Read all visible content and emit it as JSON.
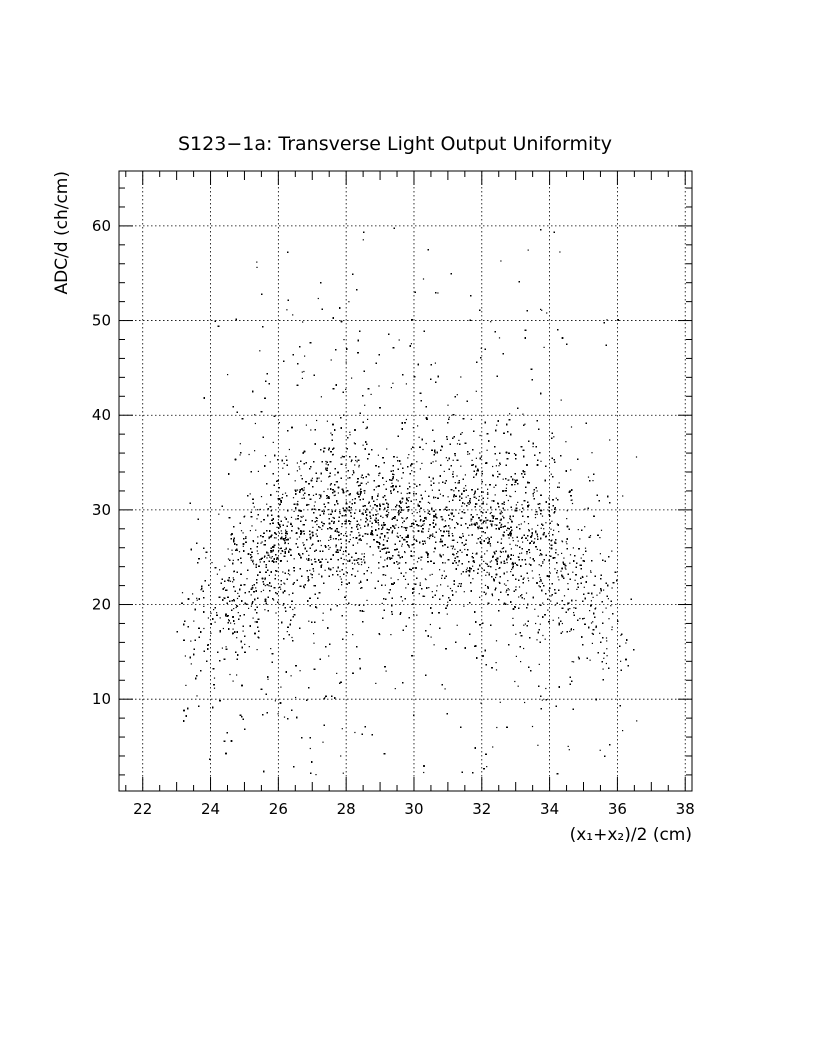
{
  "chart_data": {
    "type": "scatter",
    "title": "S123−1a: Transverse Light Output Uniformity",
    "xlabel": "(x₁+x₂)/2 (cm)",
    "ylabel": "ADC/d (ch/cm)",
    "xlim": [
      21.3,
      38.2
    ],
    "ylim": [
      0.3,
      65.8
    ],
    "x_ticks": [
      22,
      24,
      26,
      28,
      30,
      32,
      34,
      36,
      38
    ],
    "y_ticks": [
      10,
      20,
      30,
      40,
      50,
      60
    ],
    "grid": true,
    "point_color": "#000000",
    "density_profile": {
      "x": [
        23.0,
        24.0,
        25.0,
        26.0,
        27.0,
        28.0,
        29.0,
        30.0,
        31.0,
        32.0,
        33.0,
        34.0,
        35.0,
        36.0,
        36.6
      ],
      "y_center": [
        16,
        19,
        23,
        26,
        28,
        29,
        29,
        28.5,
        28.5,
        28.5,
        27.5,
        25,
        22,
        18,
        16
      ],
      "relative_density": [
        0.08,
        0.3,
        0.7,
        1.0,
        1.0,
        1.0,
        0.95,
        0.95,
        0.95,
        1.0,
        1.0,
        0.85,
        0.5,
        0.2,
        0.06
      ]
    },
    "y_cutoff_max": 60
  }
}
